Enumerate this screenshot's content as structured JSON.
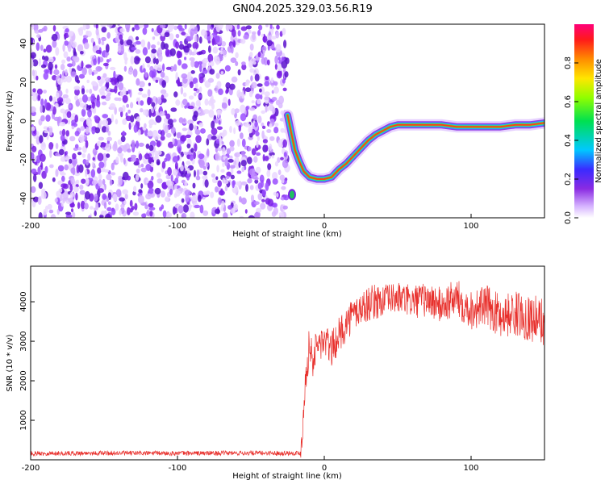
{
  "title": "GN04.2025.329.03.56.R19",
  "colors": {
    "snr_line": "#e8302c",
    "axis": "#000000"
  },
  "chart_data": [
    {
      "type": "heatmap",
      "title": "GN04.2025.329.03.56.R19",
      "xlabel": "Height of straight line (km)",
      "ylabel": "Frequency (Hz)",
      "xlim": [
        -200,
        150
      ],
      "ylim": [
        -50,
        50
      ],
      "xticks": [
        -200,
        -100,
        0,
        100
      ],
      "yticks": [
        -40,
        -20,
        0,
        20,
        40
      ],
      "noise_region": {
        "x": [
          -200,
          -25
        ],
        "y": [
          -50,
          50
        ]
      },
      "signal_track": {
        "x": [
          -25,
          -22,
          -20,
          -17,
          -14,
          -10,
          -5,
          0,
          5,
          10,
          15,
          20,
          25,
          30,
          35,
          40,
          45,
          50,
          60,
          70,
          80,
          90,
          100,
          110,
          120,
          130,
          140,
          150
        ],
        "y": [
          3,
          -8,
          -15,
          -21,
          -26,
          -29,
          -30,
          -30,
          -29,
          -25,
          -22,
          -18,
          -14,
          -10,
          -7,
          -5,
          -3,
          -2,
          -2,
          -2,
          -2,
          -3,
          -3,
          -3,
          -3,
          -2,
          -2,
          -1
        ]
      },
      "colorbar": {
        "label": "Normalized spectral amplitude",
        "range": [
          0,
          1
        ],
        "ticks": [
          "0.0",
          "0.2",
          "0.4",
          "0.6",
          "0.8"
        ]
      }
    },
    {
      "type": "line",
      "xlabel": "Height of straight line (km)",
      "ylabel": "SNR (10 * v/v)",
      "xlim": [
        -200,
        150
      ],
      "ylim": [
        0,
        4900
      ],
      "xticks": [
        -200,
        -100,
        0,
        100
      ],
      "yticks": [
        1000,
        2000,
        3000,
        4000
      ],
      "x": [
        -200,
        -150,
        -100,
        -50,
        -16,
        -14,
        -12,
        -10,
        -8,
        -5,
        0,
        5,
        10,
        15,
        20,
        30,
        40,
        50,
        60,
        70,
        80,
        90,
        100,
        110,
        120,
        130,
        140,
        150
      ],
      "y": [
        160,
        170,
        165,
        170,
        170,
        1400,
        2300,
        3000,
        2500,
        2900,
        3000,
        2800,
        3150,
        3450,
        3700,
        3950,
        4050,
        4100,
        4000,
        4050,
        3900,
        4100,
        3800,
        3900,
        3650,
        3700,
        3600,
        3500
      ]
    }
  ]
}
